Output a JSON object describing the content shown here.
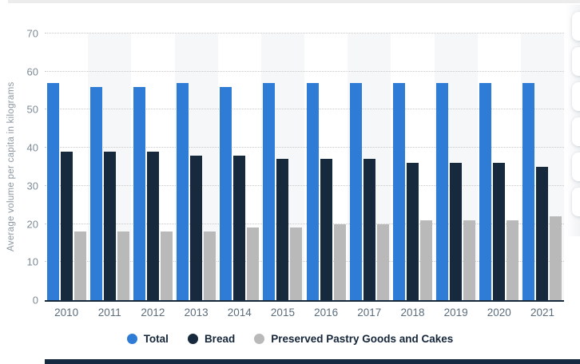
{
  "chart_data": {
    "type": "bar",
    "categories": [
      "2010",
      "2011",
      "2012",
      "2013",
      "2014",
      "2015",
      "2016",
      "2017",
      "2018",
      "2019",
      "2020",
      "2021"
    ],
    "series": [
      {
        "name": "Total",
        "color": "#2e7cd6",
        "values": [
          57,
          56,
          56,
          57,
          56,
          57,
          57,
          57,
          57,
          57,
          57,
          57
        ]
      },
      {
        "name": "Bread",
        "color": "#16293d",
        "values": [
          39,
          39,
          39,
          38,
          38,
          37,
          37,
          37,
          36,
          36,
          36,
          35
        ]
      },
      {
        "name": "Preserved Pastry Goods and Cakes",
        "color": "#b9b9b9",
        "values": [
          18,
          18,
          18,
          18,
          19,
          19,
          20,
          20,
          21,
          21,
          21,
          22
        ]
      }
    ],
    "ylabel": "Average volume per capita in kilograms",
    "xlabel": "",
    "yticks": [
      0,
      10,
      20,
      30,
      40,
      50,
      60,
      70
    ],
    "ylim": [
      0,
      70
    ],
    "grid": "horizontal-dotted",
    "legend_position": "bottom",
    "band_color": "#f6f7f8",
    "axis_line_color": "#16293d",
    "ytick_color": "#7e8b97",
    "xtick_color": "#5c6d7c",
    "legend_text_color": "#15263a"
  },
  "side_panel": {
    "button_count": 6
  }
}
